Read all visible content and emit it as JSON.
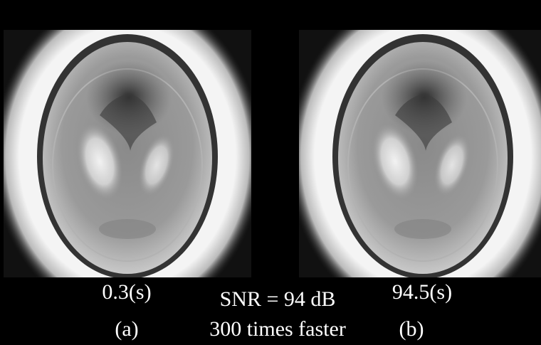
{
  "panels": [
    {
      "time": "0.3(s)",
      "label": "(a)"
    },
    {
      "time": "94.5(s)",
      "label": "(b)"
    }
  ],
  "comparison": {
    "snr": "SNR = 94 dB",
    "speedup": "300 times faster"
  }
}
